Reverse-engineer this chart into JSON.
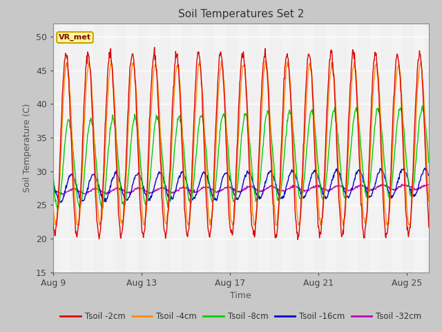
{
  "title": "Soil Temperatures Set 2",
  "xlabel": "Time",
  "ylabel": "Soil Temperature (C)",
  "ylim": [
    15,
    52
  ],
  "yticks": [
    15,
    20,
    25,
    30,
    35,
    40,
    45,
    50
  ],
  "fig_facecolor": "#c8c8c8",
  "plot_facecolor": "#e0e0e0",
  "inner_facecolor": "#f0f0f0",
  "annotation_text": "VR_met",
  "annotation_bg": "#ffff99",
  "annotation_border": "#c8a000",
  "lines": {
    "Tsoil -2cm": {
      "color": "#dd0000",
      "lw": 1.0
    },
    "Tsoil -4cm": {
      "color": "#ff8800",
      "lw": 1.0
    },
    "Tsoil -8cm": {
      "color": "#00cc00",
      "lw": 1.0
    },
    "Tsoil -16cm": {
      "color": "#0000cc",
      "lw": 1.0
    },
    "Tsoil -32cm": {
      "color": "#bb00bb",
      "lw": 1.0
    }
  },
  "xtick_labels": [
    "Aug 9",
    "Aug 13",
    "Aug 17",
    "Aug 21",
    "Aug 25"
  ],
  "xtick_positions": [
    0,
    4,
    8,
    12,
    16
  ],
  "n_days": 17,
  "samples_per_day": 48
}
